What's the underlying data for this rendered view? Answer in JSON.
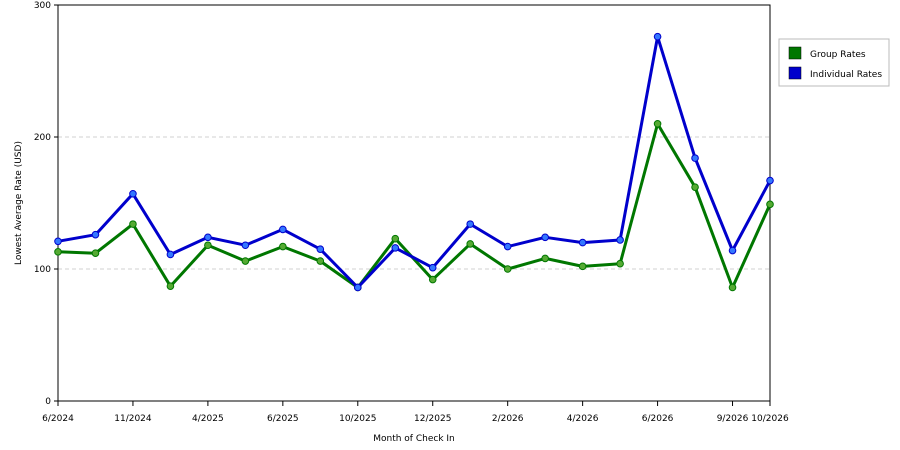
{
  "chart_data": {
    "type": "line",
    "xlabel": "Month of Check In",
    "ylabel": "Lowest Average Rate (USD)",
    "ylim": [
      0,
      300
    ],
    "yticks": [
      0,
      100,
      200,
      300
    ],
    "grid": "horizontal dashed",
    "legend_position": "right",
    "x_tick_labels": [
      "6/2024",
      "11/2024",
      "4/2025",
      "6/2025",
      "10/2025",
      "12/2025",
      "2/2026",
      "4/2026",
      "6/2026",
      "9/2026",
      "10/2026"
    ],
    "x_tick_indices": [
      0,
      2,
      4,
      6,
      8,
      10,
      12,
      14,
      16,
      18,
      19
    ],
    "series": [
      {
        "name": "Group Rates",
        "color": "#007700",
        "marker_color": "#55aa33",
        "values": [
          113,
          112,
          134,
          87,
          118,
          106,
          117,
          106,
          86,
          123,
          92,
          119,
          100,
          108,
          102,
          104,
          210,
          162,
          86,
          149
        ]
      },
      {
        "name": "Individual Rates",
        "color": "#0000cc",
        "marker_color": "#3377ff",
        "values": [
          121,
          126,
          157,
          111,
          124,
          118,
          130,
          115,
          86,
          116,
          101,
          134,
          117,
          124,
          120,
          122,
          276,
          184,
          114,
          167
        ]
      }
    ]
  }
}
